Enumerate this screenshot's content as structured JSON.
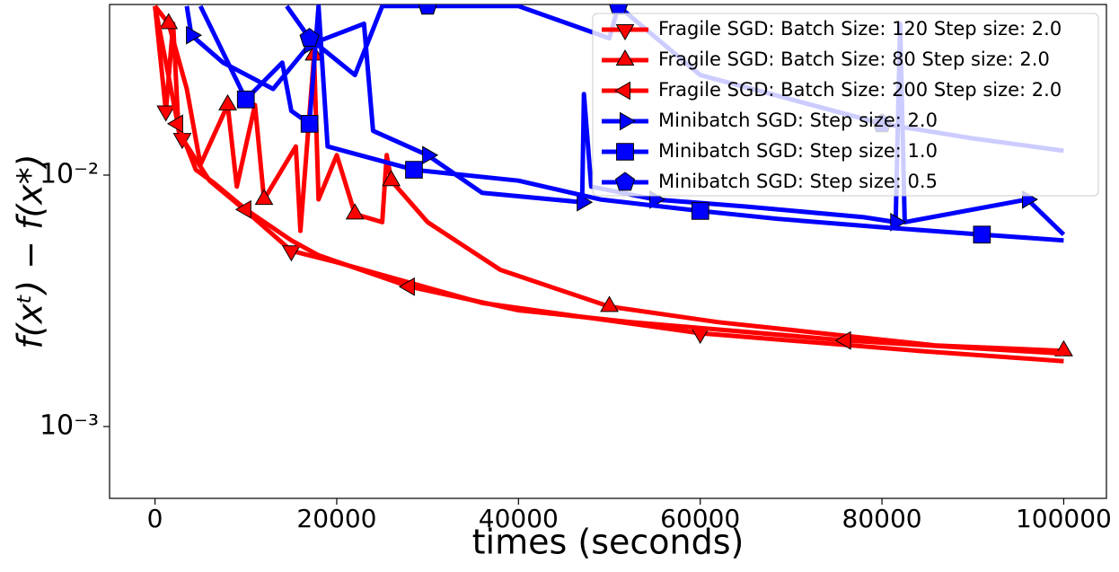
{
  "chart_data": {
    "type": "line",
    "xlabel": "times (seconds)",
    "ylabel": "f(xᵗ) − f(x*)",
    "xlim": [
      -5000,
      104700
    ],
    "xticks": [
      0,
      20000,
      40000,
      60000,
      80000,
      100000
    ],
    "ylim": [
      0.000518,
      0.0477
    ],
    "ylog": true,
    "yticks": [
      {
        "value": 0.001,
        "label": "10⁻³"
      },
      {
        "value": 0.01,
        "label": "10⁻²"
      }
    ],
    "legend": "upper right",
    "series": [
      {
        "name": "Fragile SGD: Batch Size: 120 Step size: 2.0",
        "color": "#ff0000",
        "marker": "v",
        "x": [
          0,
          1200,
          2000,
          2600,
          3000,
          6000,
          10000,
          15000,
          20000,
          36000,
          60000,
          84000,
          100000
        ],
        "values": [
          0.047,
          0.018,
          0.04,
          0.015,
          0.014,
          0.0095,
          0.0072,
          0.005,
          0.0045,
          0.0031,
          0.00235,
          0.002,
          0.00182
        ]
      },
      {
        "name": "Fragile SGD: Batch Size: 80 Step size: 2.0",
        "color": "#ff0000",
        "marker": "^",
        "x": [
          0,
          1500,
          3500,
          5000,
          8000,
          9000,
          11000,
          12000,
          15500,
          16000,
          17500,
          18000,
          20000,
          22000,
          25000,
          25500,
          26000,
          30000,
          38000,
          50000,
          62000,
          86000,
          100000
        ],
        "values": [
          0.047,
          0.04,
          0.022,
          0.011,
          0.019,
          0.009,
          0.019,
          0.008,
          0.013,
          0.006,
          0.03,
          0.008,
          0.012,
          0.007,
          0.0065,
          0.012,
          0.0095,
          0.0065,
          0.0042,
          0.003,
          0.0026,
          0.0021,
          0.002
        ]
      },
      {
        "name": "Fragile SGD: Batch Size: 200 Step size: 2.0",
        "color": "#ff0000",
        "marker": "<",
        "x": [
          0,
          2500,
          4500,
          6500,
          10000,
          15000,
          18000,
          28000,
          40000,
          52500,
          76000,
          100000
        ],
        "values": [
          0.047,
          0.016,
          0.0105,
          0.0093,
          0.0073,
          0.0055,
          0.0048,
          0.0036,
          0.0029,
          0.0026,
          0.0022,
          0.00195
        ]
      },
      {
        "name": "Minibatch SGD: Step size: 2.0",
        "color": "#0000ff",
        "marker": ">",
        "x": [
          3500,
          4000,
          7500,
          13000,
          17000,
          23000,
          24000,
          30000,
          35000,
          36000,
          47000,
          47200,
          48000,
          55000,
          65000,
          78000,
          81500,
          82000,
          82500,
          96000,
          100000
        ],
        "values": [
          0.047,
          0.036,
          0.028,
          0.022,
          0.033,
          0.04,
          0.015,
          0.012,
          0.009,
          0.0085,
          0.0078,
          0.021,
          0.009,
          0.008,
          0.0075,
          0.0068,
          0.0065,
          0.04,
          0.0065,
          0.008,
          0.0058
        ]
      },
      {
        "name": "Minibatch SGD: Step size: 1.0",
        "color": "#0000ff",
        "marker": "s",
        "x": [
          5000,
          10000,
          14000,
          15000,
          17000,
          18000,
          19000,
          28500,
          40000,
          49000,
          60000,
          68500,
          80000,
          91000,
          100000
        ],
        "values": [
          0.047,
          0.02,
          0.028,
          0.018,
          0.016,
          0.047,
          0.013,
          0.0105,
          0.0095,
          0.008,
          0.0072,
          0.0067,
          0.0062,
          0.0058,
          0.0055
        ]
      },
      {
        "name": "Minibatch SGD: Step size: 0.5",
        "color": "#0000ff",
        "marker": "p",
        "x": [
          14500,
          17000,
          22000,
          25000,
          30000,
          40000,
          50000,
          51000,
          60000,
          70000,
          80000,
          90000,
          100000
        ],
        "values": [
          0.047,
          0.035,
          0.025,
          0.047,
          0.047,
          0.047,
          0.035,
          0.047,
          0.025,
          0.02,
          0.016,
          0.014,
          0.0125
        ]
      }
    ]
  }
}
